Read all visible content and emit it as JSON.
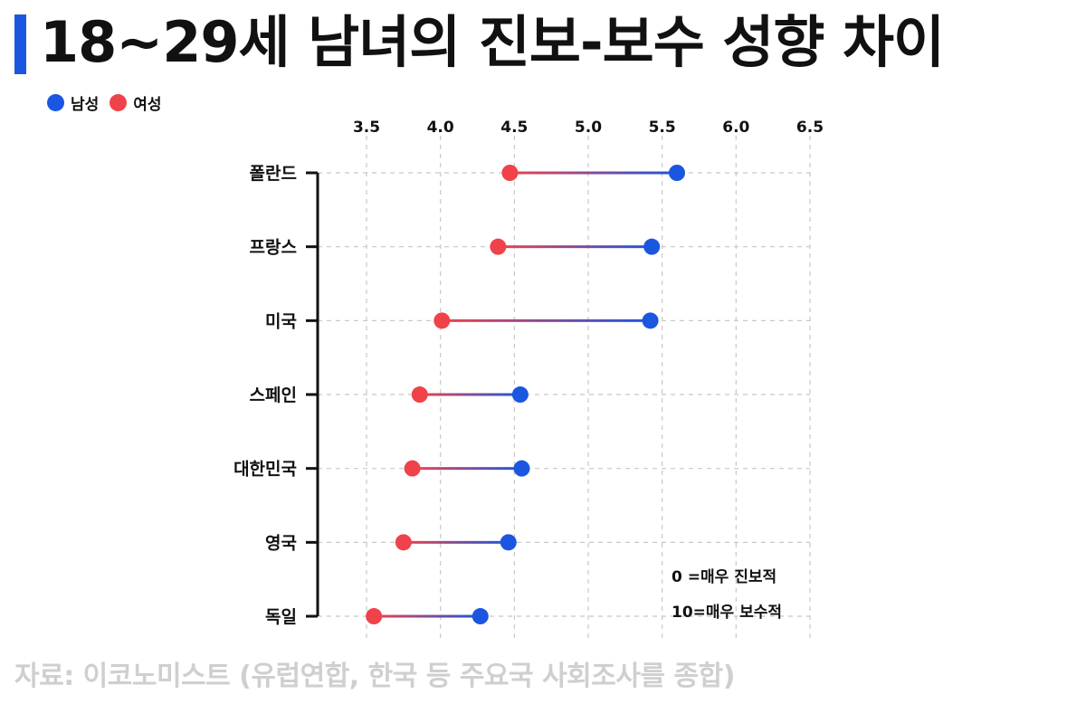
{
  "title": "18~29세 남녀의 진보-보수 성향 차이",
  "legend": {
    "male": "남성",
    "female": "여성"
  },
  "note": {
    "line1": "0 =매우 진보적",
    "line2": "10=매우 보수적"
  },
  "source": "자료: 이코노미스트 (유럽연합, 한국 등 주요국 사회조사를 종합)",
  "colors": {
    "male": "#1a56e0",
    "female": "#f0424a",
    "accent": "#1a56e0"
  },
  "chart_data": {
    "type": "scatter",
    "title": "18~29세 남녀의 진보-보수 성향 차이",
    "xlim": [
      3.2,
      6.5
    ],
    "xticks": [
      "3.5",
      "4.0",
      "4.5",
      "5.0",
      "5.5",
      "6.0",
      "6.5"
    ],
    "xtick_values": [
      3.5,
      4.0,
      4.5,
      5.0,
      5.5,
      6.0,
      6.5
    ],
    "grid": true,
    "legend_position": "top-left",
    "categories": [
      "폴란드",
      "프랑스",
      "미국",
      "스페인",
      "대한민국",
      "영국",
      "독일"
    ],
    "series": [
      {
        "name": "남성",
        "values": [
          5.6,
          5.43,
          5.42,
          4.54,
          4.55,
          4.46,
          4.27
        ]
      },
      {
        "name": "여성",
        "values": [
          4.47,
          4.39,
          4.01,
          3.86,
          3.81,
          3.75,
          3.55
        ]
      }
    ]
  }
}
